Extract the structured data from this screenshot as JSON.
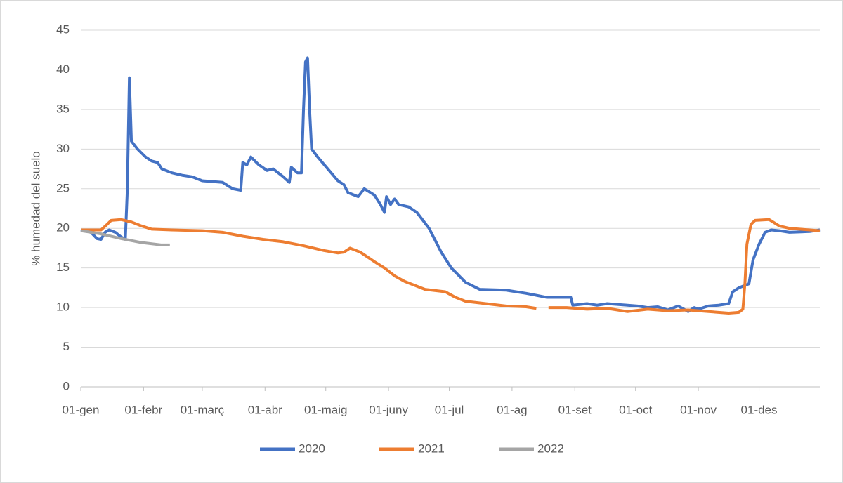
{
  "chart_data": {
    "type": "line",
    "y_label": "% humedad del suelo",
    "xlim": [
      0,
      365
    ],
    "xticks": [
      {
        "value": 0,
        "label": "01-gen"
      },
      {
        "value": 31,
        "label": "01-febr"
      },
      {
        "value": 60,
        "label": "01-març"
      },
      {
        "value": 91,
        "label": "01-abr"
      },
      {
        "value": 121,
        "label": "01-maig"
      },
      {
        "value": 152,
        "label": "01-juny"
      },
      {
        "value": 182,
        "label": "01-jul"
      },
      {
        "value": 213,
        "label": "01-ag"
      },
      {
        "value": 244,
        "label": "01-set"
      },
      {
        "value": 274,
        "label": "01-oct"
      },
      {
        "value": 305,
        "label": "01-nov"
      },
      {
        "value": 335,
        "label": "01-des"
      }
    ],
    "ylim": [
      0,
      45
    ],
    "yticks": [
      0,
      5,
      10,
      15,
      20,
      25,
      30,
      35,
      40,
      45
    ],
    "grid": true,
    "legend": "bottom",
    "series": [
      {
        "name": "2020",
        "color": "#4472c4",
        "x": [
          0,
          5,
          8,
          10,
          12,
          14,
          17,
          20,
          22,
          23,
          24,
          25,
          28,
          32,
          35,
          38,
          40,
          45,
          50,
          55,
          60,
          70,
          75,
          79,
          80,
          82,
          84,
          88,
          92,
          95,
          100,
          103,
          104,
          107,
          109,
          110,
          111,
          112,
          113,
          114,
          117,
          122,
          127,
          130,
          132,
          137,
          140,
          145,
          148,
          150,
          151,
          153,
          155,
          157,
          162,
          166,
          172,
          178,
          183,
          190,
          197,
          210,
          220,
          230,
          242,
          243,
          250,
          255,
          260,
          270,
          275,
          280,
          285,
          290,
          295,
          300,
          303,
          305,
          310,
          315,
          320,
          322,
          325,
          328,
          330,
          332,
          335,
          338,
          341,
          345,
          350,
          360,
          365
        ],
        "values": [
          19.8,
          19.5,
          18.7,
          18.6,
          19.5,
          19.8,
          19.5,
          18.9,
          18.6,
          25,
          39,
          31,
          30,
          29,
          28.5,
          28.3,
          27.5,
          27,
          26.7,
          26.5,
          26,
          25.8,
          25,
          24.8,
          28.3,
          28,
          29,
          28,
          27.3,
          27.5,
          26.5,
          25.8,
          27.7,
          27,
          27,
          35,
          41,
          41.5,
          35,
          30,
          29,
          27.5,
          26,
          25.5,
          24.5,
          24,
          25,
          24.2,
          23,
          22,
          24,
          23,
          23.7,
          23,
          22.7,
          22,
          20,
          17,
          15,
          13.2,
          12.3,
          12.2,
          11.8,
          11.3,
          11.3,
          10.3,
          10.5,
          10.3,
          10.5,
          10.3,
          10.2,
          10,
          10.1,
          9.7,
          10.2,
          9.5,
          10,
          9.8,
          10.2,
          10.3,
          10.5,
          12,
          12.5,
          12.8,
          13,
          16,
          18,
          19.5,
          19.8,
          19.7,
          19.5,
          19.6,
          19.8
        ]
      },
      {
        "name": "2021",
        "color": "#ed7d31",
        "x": [
          0,
          10,
          13,
          15,
          20,
          25,
          30,
          35,
          45,
          60,
          70,
          80,
          90,
          100,
          110,
          120,
          127,
          130,
          133,
          138,
          145,
          150,
          155,
          160,
          165,
          170,
          180,
          185,
          190,
          200,
          210,
          220,
          225,
          228,
          231,
          240,
          250,
          260,
          270,
          280,
          290,
          300,
          310,
          320,
          325,
          327,
          328,
          329,
          331,
          333,
          340,
          345,
          350,
          360,
          365
        ],
        "values": [
          19.8,
          19.8,
          20.5,
          21,
          21.1,
          20.8,
          20.3,
          19.9,
          19.8,
          19.7,
          19.5,
          19,
          18.6,
          18.3,
          17.8,
          17.2,
          16.9,
          17,
          17.5,
          17,
          15.8,
          15,
          14,
          13.3,
          12.8,
          12.3,
          12,
          11.3,
          10.8,
          10.5,
          10.2,
          10.1,
          9.9,
          null,
          10,
          10,
          9.8,
          9.9,
          9.5,
          9.8,
          9.6,
          9.7,
          9.5,
          9.3,
          9.4,
          9.8,
          13,
          18,
          20.5,
          21,
          21.1,
          20.3,
          20,
          19.8,
          19.7
        ]
      },
      {
        "name": "2022",
        "color": "#a5a5a5",
        "x": [
          0,
          10,
          20,
          30,
          40,
          44
        ],
        "values": [
          19.7,
          19.3,
          18.7,
          18.2,
          17.9,
          17.9
        ]
      }
    ]
  }
}
